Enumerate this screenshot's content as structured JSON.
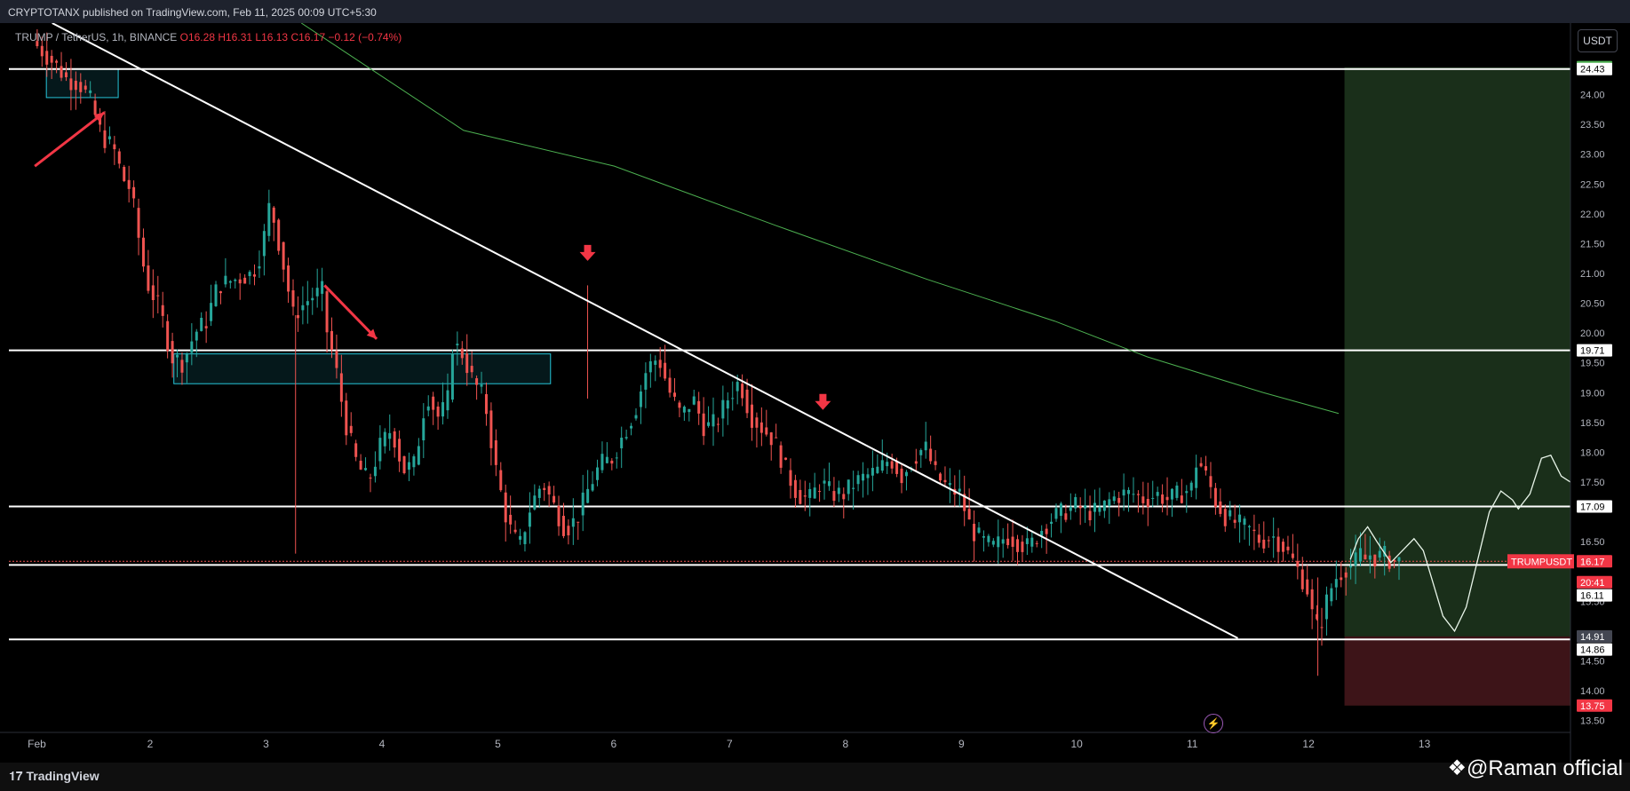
{
  "header": {
    "published": "CRYPTOTANX published on TradingView.com, Feb 11, 2025 00:09 UTC+5:30",
    "symbol_desc": "TRUMP / TetherUS, 1h, BINANCE",
    "ohlc": {
      "open": "O16.28",
      "high": "H16.31",
      "low": "L16.13",
      "close": "C16.17",
      "change": "−0.12 (−0.74%)"
    }
  },
  "currency_button": "USDT",
  "footer": {
    "logo_text": "TradingView",
    "watermark": "@Raman official"
  },
  "colors": {
    "background": "#000000",
    "up": "#26a69a",
    "down": "#ef5350",
    "ma": "#4caf50",
    "zone_fill": "#1a2f1a",
    "stop_fill": "#3d1418",
    "box_border": "#26c6da",
    "arrow": "#f23645",
    "projection": "#e8f5e9"
  },
  "chart_data": {
    "type": "candlestick",
    "symbol": "TRUMPUSDT",
    "interval": "1h",
    "exchange": "BINANCE",
    "price_ticks": [
      "24.00",
      "23.50",
      "23.00",
      "22.50",
      "22.00",
      "21.50",
      "21.00",
      "20.50",
      "20.00",
      "19.50",
      "19.00",
      "18.50",
      "18.00",
      "17.50",
      "16.50",
      "15.50",
      "14.50",
      "14.00",
      "13.50"
    ],
    "x_ticks": [
      "Feb",
      "2",
      "3",
      "4",
      "5",
      "6",
      "7",
      "8",
      "9",
      "10",
      "11",
      "12",
      "13"
    ],
    "ylim": [
      13.3,
      25.2
    ],
    "xlim": [
      0.7,
      14.25
    ],
    "horizontal_levels": [
      24.43,
      19.71,
      17.09,
      16.11,
      14.86
    ],
    "trendline": {
      "from": [
        1.15,
        25.2
      ],
      "to": [
        11.38,
        14.88
      ]
    },
    "moving_average": [
      [
        3.3,
        25.2
      ],
      [
        4.7,
        23.4
      ],
      [
        6.0,
        22.8
      ],
      [
        7.4,
        21.8
      ],
      [
        8.7,
        20.9
      ],
      [
        9.8,
        20.2
      ],
      [
        10.6,
        19.6
      ],
      [
        11.6,
        19.0
      ],
      [
        12.25,
        18.65
      ]
    ],
    "demand_zones": [
      {
        "x": [
          1.1,
          1.72
        ],
        "y": [
          23.95,
          24.43
        ]
      },
      {
        "x": [
          2.2,
          5.45
        ],
        "y": [
          19.15,
          19.65
        ]
      }
    ],
    "position": {
      "entry": 14.91,
      "target": 24.46,
      "stop": 13.75,
      "x": [
        12.3,
        14.5
      ]
    },
    "projection_path": [
      [
        12.35,
        16.2
      ],
      [
        12.42,
        16.55
      ],
      [
        12.5,
        16.75
      ],
      [
        12.58,
        16.5
      ],
      [
        12.7,
        16.15
      ],
      [
        12.8,
        16.35
      ],
      [
        12.9,
        16.55
      ],
      [
        12.98,
        16.35
      ],
      [
        13.05,
        15.9
      ],
      [
        13.15,
        15.25
      ],
      [
        13.25,
        15.0
      ],
      [
        13.35,
        15.4
      ],
      [
        13.45,
        16.2
      ],
      [
        13.55,
        17.0
      ],
      [
        13.65,
        17.35
      ],
      [
        13.75,
        17.2
      ],
      [
        13.8,
        17.05
      ],
      [
        13.9,
        17.3
      ],
      [
        14.0,
        17.9
      ],
      [
        14.08,
        17.95
      ],
      [
        14.17,
        17.6
      ],
      [
        14.25,
        17.5
      ],
      [
        14.35,
        17.7
      ],
      [
        14.38,
        18.3
      ],
      [
        14.4,
        19.8
      ],
      [
        14.42,
        21.3
      ]
    ],
    "down_arrows": [
      [
        5.77,
        21.3
      ],
      [
        7.8,
        18.8
      ]
    ],
    "diagonal_arrows": [
      {
        "from": [
          1.0,
          22.8
        ],
        "to": [
          1.6,
          23.7
        ]
      },
      {
        "from": [
          3.5,
          20.8
        ],
        "to": [
          3.95,
          19.9
        ]
      }
    ],
    "candle_path": [
      [
        1.0,
        24.9
      ],
      [
        1.1,
        24.7
      ],
      [
        1.2,
        24.5
      ],
      [
        1.3,
        24.25
      ],
      [
        1.4,
        24.2
      ],
      [
        1.45,
        24.05
      ],
      [
        1.5,
        23.9
      ],
      [
        1.55,
        23.6
      ],
      [
        1.6,
        23.3
      ],
      [
        1.7,
        23.1
      ],
      [
        1.78,
        22.6
      ],
      [
        1.85,
        22.4
      ],
      [
        1.95,
        21.2
      ],
      [
        2.0,
        20.8
      ],
      [
        2.1,
        20.4
      ],
      [
        2.2,
        19.6
      ],
      [
        2.3,
        19.5
      ],
      [
        2.4,
        20.0
      ],
      [
        2.5,
        20.2
      ],
      [
        2.6,
        20.8
      ],
      [
        2.75,
        20.9
      ],
      [
        2.9,
        21.0
      ],
      [
        2.98,
        21.4
      ],
      [
        3.05,
        22.2
      ],
      [
        3.15,
        21.3
      ],
      [
        3.25,
        20.3
      ],
      [
        3.4,
        20.6
      ],
      [
        3.5,
        20.7
      ],
      [
        3.55,
        19.9
      ],
      [
        3.6,
        19.6
      ],
      [
        3.7,
        18.5
      ],
      [
        3.8,
        17.8
      ],
      [
        3.9,
        17.5
      ],
      [
        4.0,
        18.1
      ],
      [
        4.1,
        18.4
      ],
      [
        4.2,
        17.7
      ],
      [
        4.3,
        17.8
      ],
      [
        4.4,
        19.0
      ],
      [
        4.5,
        18.6
      ],
      [
        4.58,
        18.8
      ],
      [
        4.62,
        19.8
      ],
      [
        4.7,
        19.7
      ],
      [
        4.8,
        19.2
      ],
      [
        4.9,
        18.9
      ],
      [
        5.0,
        17.7
      ],
      [
        5.1,
        16.8
      ],
      [
        5.2,
        16.4
      ],
      [
        5.3,
        17.1
      ],
      [
        5.4,
        17.5
      ],
      [
        5.5,
        17.1
      ],
      [
        5.6,
        16.7
      ],
      [
        5.7,
        16.9
      ],
      [
        5.8,
        17.4
      ],
      [
        5.9,
        17.8
      ],
      [
        6.0,
        17.9
      ],
      [
        6.1,
        18.3
      ],
      [
        6.2,
        18.7
      ],
      [
        6.3,
        19.4
      ],
      [
        6.4,
        19.6
      ],
      [
        6.5,
        19.0
      ],
      [
        6.6,
        18.6
      ],
      [
        6.7,
        18.9
      ],
      [
        6.8,
        18.4
      ],
      [
        6.9,
        18.5
      ],
      [
        7.0,
        18.9
      ],
      [
        7.1,
        19.2
      ],
      [
        7.2,
        18.6
      ],
      [
        7.3,
        18.4
      ],
      [
        7.4,
        18.2
      ],
      [
        7.5,
        17.7
      ],
      [
        7.6,
        17.3
      ],
      [
        7.7,
        17.2
      ],
      [
        7.8,
        17.5
      ],
      [
        7.9,
        17.3
      ],
      [
        8.0,
        17.3
      ],
      [
        8.1,
        17.5
      ],
      [
        8.2,
        17.6
      ],
      [
        8.3,
        17.7
      ],
      [
        8.4,
        17.9
      ],
      [
        8.5,
        17.6
      ],
      [
        8.6,
        17.9
      ],
      [
        8.7,
        18.1
      ],
      [
        8.8,
        17.6
      ],
      [
        8.9,
        17.4
      ],
      [
        9.0,
        17.3
      ],
      [
        9.1,
        16.7
      ],
      [
        9.2,
        16.5
      ],
      [
        9.3,
        16.4
      ],
      [
        9.4,
        16.6
      ],
      [
        9.5,
        16.5
      ],
      [
        9.6,
        16.4
      ],
      [
        9.7,
        16.7
      ],
      [
        9.8,
        16.9
      ],
      [
        9.9,
        17.0
      ],
      [
        10.0,
        17.1
      ],
      [
        10.1,
        17.0
      ],
      [
        10.2,
        17.0
      ],
      [
        10.3,
        17.2
      ],
      [
        10.4,
        17.3
      ],
      [
        10.5,
        17.3
      ],
      [
        10.6,
        17.2
      ],
      [
        10.7,
        17.3
      ],
      [
        10.8,
        17.2
      ],
      [
        10.9,
        17.3
      ],
      [
        11.0,
        17.4
      ],
      [
        11.05,
        17.9
      ],
      [
        11.15,
        17.5
      ],
      [
        11.2,
        17.2
      ],
      [
        11.3,
        16.9
      ],
      [
        11.4,
        16.8
      ],
      [
        11.5,
        16.7
      ],
      [
        11.6,
        16.5
      ],
      [
        11.7,
        16.6
      ],
      [
        11.8,
        16.4
      ],
      [
        11.9,
        16.1
      ],
      [
        12.0,
        15.7
      ],
      [
        12.05,
        15.2
      ],
      [
        12.1,
        15.0
      ],
      [
        12.15,
        15.4
      ],
      [
        12.2,
        15.7
      ],
      [
        12.25,
        15.9
      ],
      [
        12.3,
        16.0
      ],
      [
        12.35,
        16.1
      ],
      [
        12.4,
        16.1
      ],
      [
        12.45,
        16.3
      ],
      [
        12.5,
        16.2
      ],
      [
        12.55,
        16.3
      ],
      [
        12.6,
        16.2
      ],
      [
        12.65,
        16.3
      ],
      [
        12.7,
        16.2
      ],
      [
        12.75,
        16.17
      ]
    ],
    "special_wicks": [
      [
        3.25,
        16.3,
        20.3
      ],
      [
        5.77,
        18.9,
        20.8
      ],
      [
        12.07,
        14.25,
        15.9
      ]
    ],
    "right_labels": [
      {
        "price": 24.46,
        "text": "24.46",
        "bg": "#4caf50",
        "fg": "#ffffff"
      },
      {
        "price": 24.43,
        "text": "24.43",
        "bg": "#ffffff",
        "fg": "#000000"
      },
      {
        "price": 19.71,
        "text": "19.71",
        "bg": "#ffffff",
        "fg": "#000000"
      },
      {
        "price": 17.09,
        "text": "17.09",
        "bg": "#ffffff",
        "fg": "#000000"
      },
      {
        "price": 16.17,
        "text": "16.17",
        "bg": "#f23645",
        "fg": "#ffffff"
      },
      {
        "price": 15.82,
        "text": "20:41",
        "bg": "#f23645",
        "fg": "#ffffff"
      },
      {
        "price": 15.6,
        "text": "16.11",
        "bg": "#ffffff",
        "fg": "#000000"
      },
      {
        "price": 14.91,
        "text": "14.91",
        "bg": "#434651",
        "fg": "#ffffff"
      },
      {
        "price": 14.69,
        "text": "14.86",
        "bg": "#ffffff",
        "fg": "#000000"
      },
      {
        "price": 13.75,
        "text": "13.75",
        "bg": "#f23645",
        "fg": "#ffffff"
      }
    ],
    "ticker_label": "TRUMPUSDT"
  }
}
